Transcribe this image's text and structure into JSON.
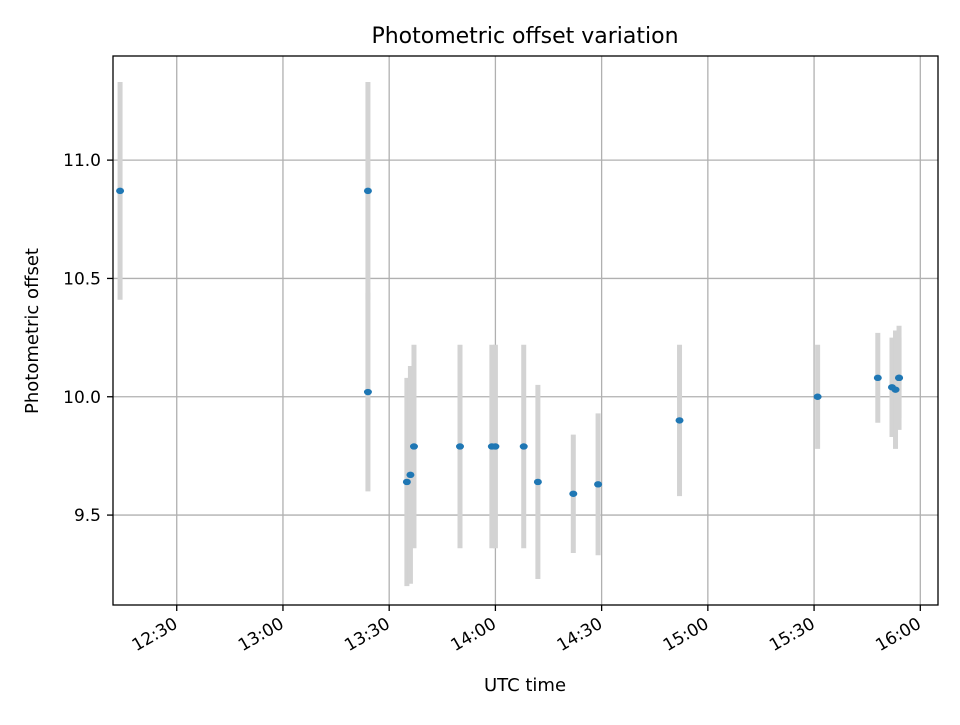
{
  "chart_data": {
    "type": "scatter",
    "title": "Photometric offset variation",
    "xlabel": "UTC time",
    "ylabel": "Photometric offset",
    "xlim": [
      "12:12",
      "16:05"
    ],
    "ylim": [
      9.12,
      11.44
    ],
    "x_ticks": [
      "12:30",
      "13:00",
      "13:30",
      "14:00",
      "14:30",
      "15:00",
      "15:30",
      "16:00"
    ],
    "y_ticks": [
      9.5,
      10.0,
      10.5,
      11.0
    ],
    "y_tick_labels": [
      "9.5",
      "10.0",
      "10.5",
      "11.0"
    ],
    "grid": true,
    "marker_color": "#1f77b4",
    "errorbar_color": "#d3d3d3",
    "points": [
      {
        "t": "12:14",
        "y": 10.87,
        "err": 0.46
      },
      {
        "t": "13:24",
        "y": 10.87,
        "err": 0.46
      },
      {
        "t": "13:24",
        "y": 10.02,
        "err": 0.42
      },
      {
        "t": "13:35",
        "y": 9.64,
        "err": 0.44
      },
      {
        "t": "13:36",
        "y": 9.67,
        "err": 0.46
      },
      {
        "t": "13:37",
        "y": 9.79,
        "err": 0.43
      },
      {
        "t": "13:50",
        "y": 9.79,
        "err": 0.43
      },
      {
        "t": "13:59",
        "y": 9.79,
        "err": 0.43
      },
      {
        "t": "14:00",
        "y": 9.79,
        "err": 0.43
      },
      {
        "t": "14:08",
        "y": 9.79,
        "err": 0.43
      },
      {
        "t": "14:12",
        "y": 9.64,
        "err": 0.41
      },
      {
        "t": "14:22",
        "y": 9.59,
        "err": 0.25
      },
      {
        "t": "14:29",
        "y": 9.63,
        "err": 0.3
      },
      {
        "t": "14:52",
        "y": 9.9,
        "err": 0.32
      },
      {
        "t": "15:31",
        "y": 10.0,
        "err": 0.22
      },
      {
        "t": "15:48",
        "y": 10.08,
        "err": 0.19
      },
      {
        "t": "15:52",
        "y": 10.04,
        "err": 0.21
      },
      {
        "t": "15:53",
        "y": 10.03,
        "err": 0.25
      },
      {
        "t": "15:54",
        "y": 10.08,
        "err": 0.22
      },
      {
        "t": "15:54",
        "y": 10.08,
        "err": 0.17
      }
    ]
  }
}
